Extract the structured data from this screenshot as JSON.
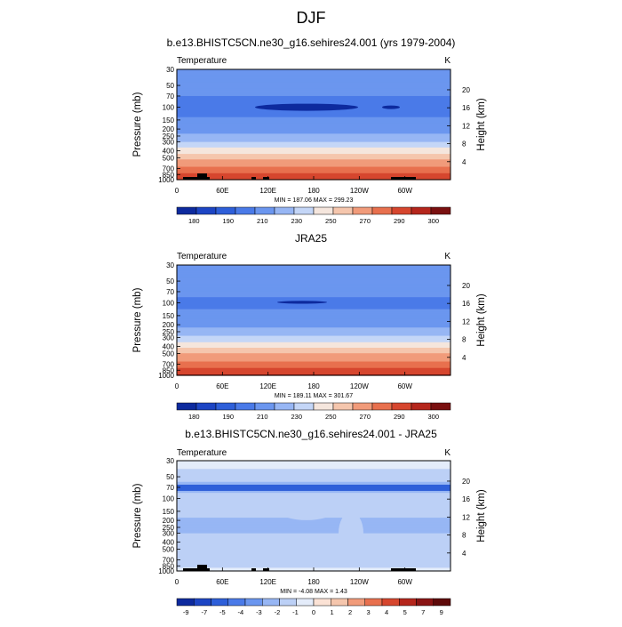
{
  "figure_title": "DJF",
  "panels": [
    {
      "title": "b.e13.BHISTC5CN.ne30_g16.sehires24.001 (yrs 1979-2004)",
      "variable": "Temperature",
      "units": "K",
      "stats": "MIN = 187.06  MAX = 299.23",
      "colorbar_labels": [
        "180",
        "190",
        "210",
        "230",
        "250",
        "270",
        "290",
        "300"
      ]
    },
    {
      "title": "JRA25",
      "variable": "Temperature",
      "units": "K",
      "stats": "MIN = 189.11  MAX = 301.67",
      "colorbar_labels": [
        "180",
        "190",
        "210",
        "230",
        "250",
        "270",
        "290",
        "300"
      ]
    },
    {
      "title": "b.e13.BHISTC5CN.ne30_g16.sehires24.001 - JRA25",
      "variable": "Temperature",
      "units": "K",
      "stats": "MIN =  -4.08  MAX =   1.43",
      "colorbar_labels": [
        "-9",
        "-7",
        "-5",
        "-4",
        "-3",
        "-2",
        "-1",
        "0",
        "1",
        "2",
        "3",
        "4",
        "5",
        "7",
        "9"
      ]
    }
  ],
  "axes": {
    "ylabel_left": "Pressure (mb)",
    "ylabel_right": "Height (km)",
    "pressure_ticks": [
      "30",
      "50",
      "70",
      "100",
      "150",
      "200",
      "250",
      "300",
      "400",
      "500",
      "700",
      "850",
      "1000"
    ],
    "height_ticks": [
      "20",
      "16",
      "12",
      "8",
      "4"
    ],
    "longitude_ticks": [
      "0",
      "60E",
      "120E",
      "180",
      "120W",
      "60W"
    ]
  },
  "chart_data": [
    {
      "type": "heatmap",
      "title": "b.e13.BHISTC5CN.ne30_g16.sehires24.001 (yrs 1979-2004)",
      "xlabel": "",
      "ylabel": "Pressure (mb)",
      "y2label": "Height (km)",
      "x_ticks": [
        "0",
        "60E",
        "120E",
        "180",
        "120W",
        "60W"
      ],
      "y_ticks": [
        30,
        50,
        70,
        100,
        150,
        200,
        250,
        300,
        400,
        500,
        700,
        850,
        1000
      ],
      "y2_ticks": [
        20,
        16,
        12,
        8,
        4
      ],
      "ylim": [
        1000,
        30
      ],
      "y_scale": "log",
      "min": 187.06,
      "max": 299.23,
      "color_levels": [
        180,
        190,
        200,
        210,
        220,
        230,
        240,
        250,
        260,
        270,
        280,
        290,
        300
      ],
      "colors": [
        "#0d2a9e",
        "#1d45c4",
        "#2e5fd9",
        "#4a7ae8",
        "#6b96ef",
        "#97b6f4",
        "#c4d6f7",
        "#f5e6dd",
        "#f5c6ad",
        "#f19b7a",
        "#e8704e",
        "#d6462e",
        "#b5261c",
        "#7a1010"
      ],
      "profile_pressure": [
        30,
        50,
        70,
        100,
        150,
        200,
        250,
        300,
        400,
        500,
        700,
        850,
        1000
      ],
      "profile_values": [
        212,
        212,
        210,
        206,
        211,
        216,
        222,
        230,
        245,
        258,
        272,
        282,
        288
      ]
    },
    {
      "type": "heatmap",
      "title": "JRA25",
      "xlabel": "",
      "ylabel": "Pressure (mb)",
      "y2label": "Height (km)",
      "x_ticks": [
        "0",
        "60E",
        "120E",
        "180",
        "120W",
        "60W"
      ],
      "y_ticks": [
        30,
        50,
        70,
        100,
        150,
        200,
        250,
        300,
        400,
        500,
        700,
        850,
        1000
      ],
      "y2_ticks": [
        20,
        16,
        12,
        8,
        4
      ],
      "ylim": [
        1000,
        30
      ],
      "y_scale": "log",
      "min": 189.11,
      "max": 301.67,
      "color_levels": [
        180,
        190,
        200,
        210,
        220,
        230,
        240,
        250,
        260,
        270,
        280,
        290,
        300
      ],
      "colors": [
        "#0d2a9e",
        "#1d45c4",
        "#2e5fd9",
        "#4a7ae8",
        "#6b96ef",
        "#97b6f4",
        "#c4d6f7",
        "#f5e6dd",
        "#f5c6ad",
        "#f19b7a",
        "#e8704e",
        "#d6462e",
        "#b5261c",
        "#7a1010"
      ],
      "profile_pressure": [
        30,
        50,
        70,
        100,
        150,
        200,
        250,
        300,
        400,
        500,
        700,
        850,
        1000
      ],
      "profile_values": [
        214,
        214,
        212,
        208,
        212,
        217,
        224,
        232,
        247,
        260,
        274,
        284,
        291
      ]
    },
    {
      "type": "heatmap",
      "title": "b.e13.BHISTC5CN.ne30_g16.sehires24.001 - JRA25",
      "xlabel": "",
      "ylabel": "Pressure (mb)",
      "y2label": "Height (km)",
      "x_ticks": [
        "0",
        "60E",
        "120E",
        "180",
        "120W",
        "60W"
      ],
      "y_ticks": [
        30,
        50,
        70,
        100,
        150,
        200,
        250,
        300,
        400,
        500,
        700,
        850,
        1000
      ],
      "y2_ticks": [
        20,
        16,
        12,
        8,
        4
      ],
      "ylim": [
        1000,
        30
      ],
      "y_scale": "log",
      "min": -4.08,
      "max": 1.43,
      "color_levels": [
        -9,
        -7,
        -5,
        -4,
        -3,
        -2,
        -1,
        0,
        1,
        2,
        3,
        4,
        5,
        7,
        9
      ],
      "colors": [
        "#0d2a9e",
        "#1d45c4",
        "#2e5fd9",
        "#4a7ae8",
        "#6b96ef",
        "#97b6f4",
        "#bcd0f6",
        "#e4ecfa",
        "#fbe2d5",
        "#f5c6ad",
        "#f19b7a",
        "#e8704e",
        "#d6462e",
        "#b5261c",
        "#8a1414",
        "#5e0a0a"
      ],
      "profile_pressure": [
        30,
        50,
        70,
        100,
        150,
        200,
        250,
        300,
        400,
        500,
        700,
        850,
        1000
      ],
      "profile_values": [
        -0.5,
        -1.5,
        -2.5,
        -1.5,
        -1.5,
        -2.2,
        -2.2,
        -2.0,
        -2.0,
        -1.8,
        -1.2,
        -0.6,
        -1.0
      ]
    }
  ]
}
